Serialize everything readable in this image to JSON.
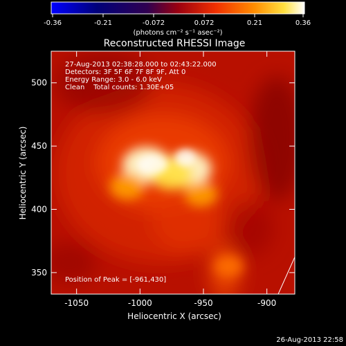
{
  "colorbar": {
    "ticks": [
      "-0.36",
      "-0.21",
      "-0.072",
      "0.072",
      "0.21",
      "0.36"
    ],
    "unit_label": "(photons cm⁻² s⁻¹ asec⁻²)"
  },
  "info": {
    "time_range": "27-Aug-2013 02:38:28.000 to 02:43:22.000",
    "detectors": "Detectors: 3F 5F 6F 7F 8F 9F, Att 0",
    "energy": "Energy Range: 3.0 - 6.0 keV",
    "clean": "Clean    Total counts: 1.30E+05",
    "peak": "Position of Peak = [-961,430]"
  },
  "footer_date": "26-Aug-2013 22:58",
  "chart_data": {
    "type": "heatmap",
    "title": "Reconstructed RHESSI Image",
    "xlabel": "Heliocentric X (arcsec)",
    "ylabel": "Heliocentric Y (arcsec)",
    "xlim": [
      -1070,
      -878
    ],
    "ylim": [
      333,
      525
    ],
    "xticks": [
      -1050,
      -1000,
      -950,
      -900
    ],
    "yticks": [
      350,
      400,
      450,
      500
    ],
    "color_range": [
      -0.36,
      0.36
    ],
    "colormap": "RHESSI blue-black-red-yellow-white",
    "peak": {
      "x": -961,
      "y": 430
    },
    "sources": [
      {
        "x": -995,
        "y": 435,
        "intensity": 0.36
      },
      {
        "x": -962,
        "y": 432,
        "intensity": 0.34
      },
      {
        "x": -975,
        "y": 428,
        "intensity": 0.3
      },
      {
        "x": -1010,
        "y": 418,
        "intensity": 0.22
      },
      {
        "x": -952,
        "y": 412,
        "intensity": 0.2
      },
      {
        "x": -930,
        "y": 355,
        "intensity": 0.16
      }
    ]
  }
}
